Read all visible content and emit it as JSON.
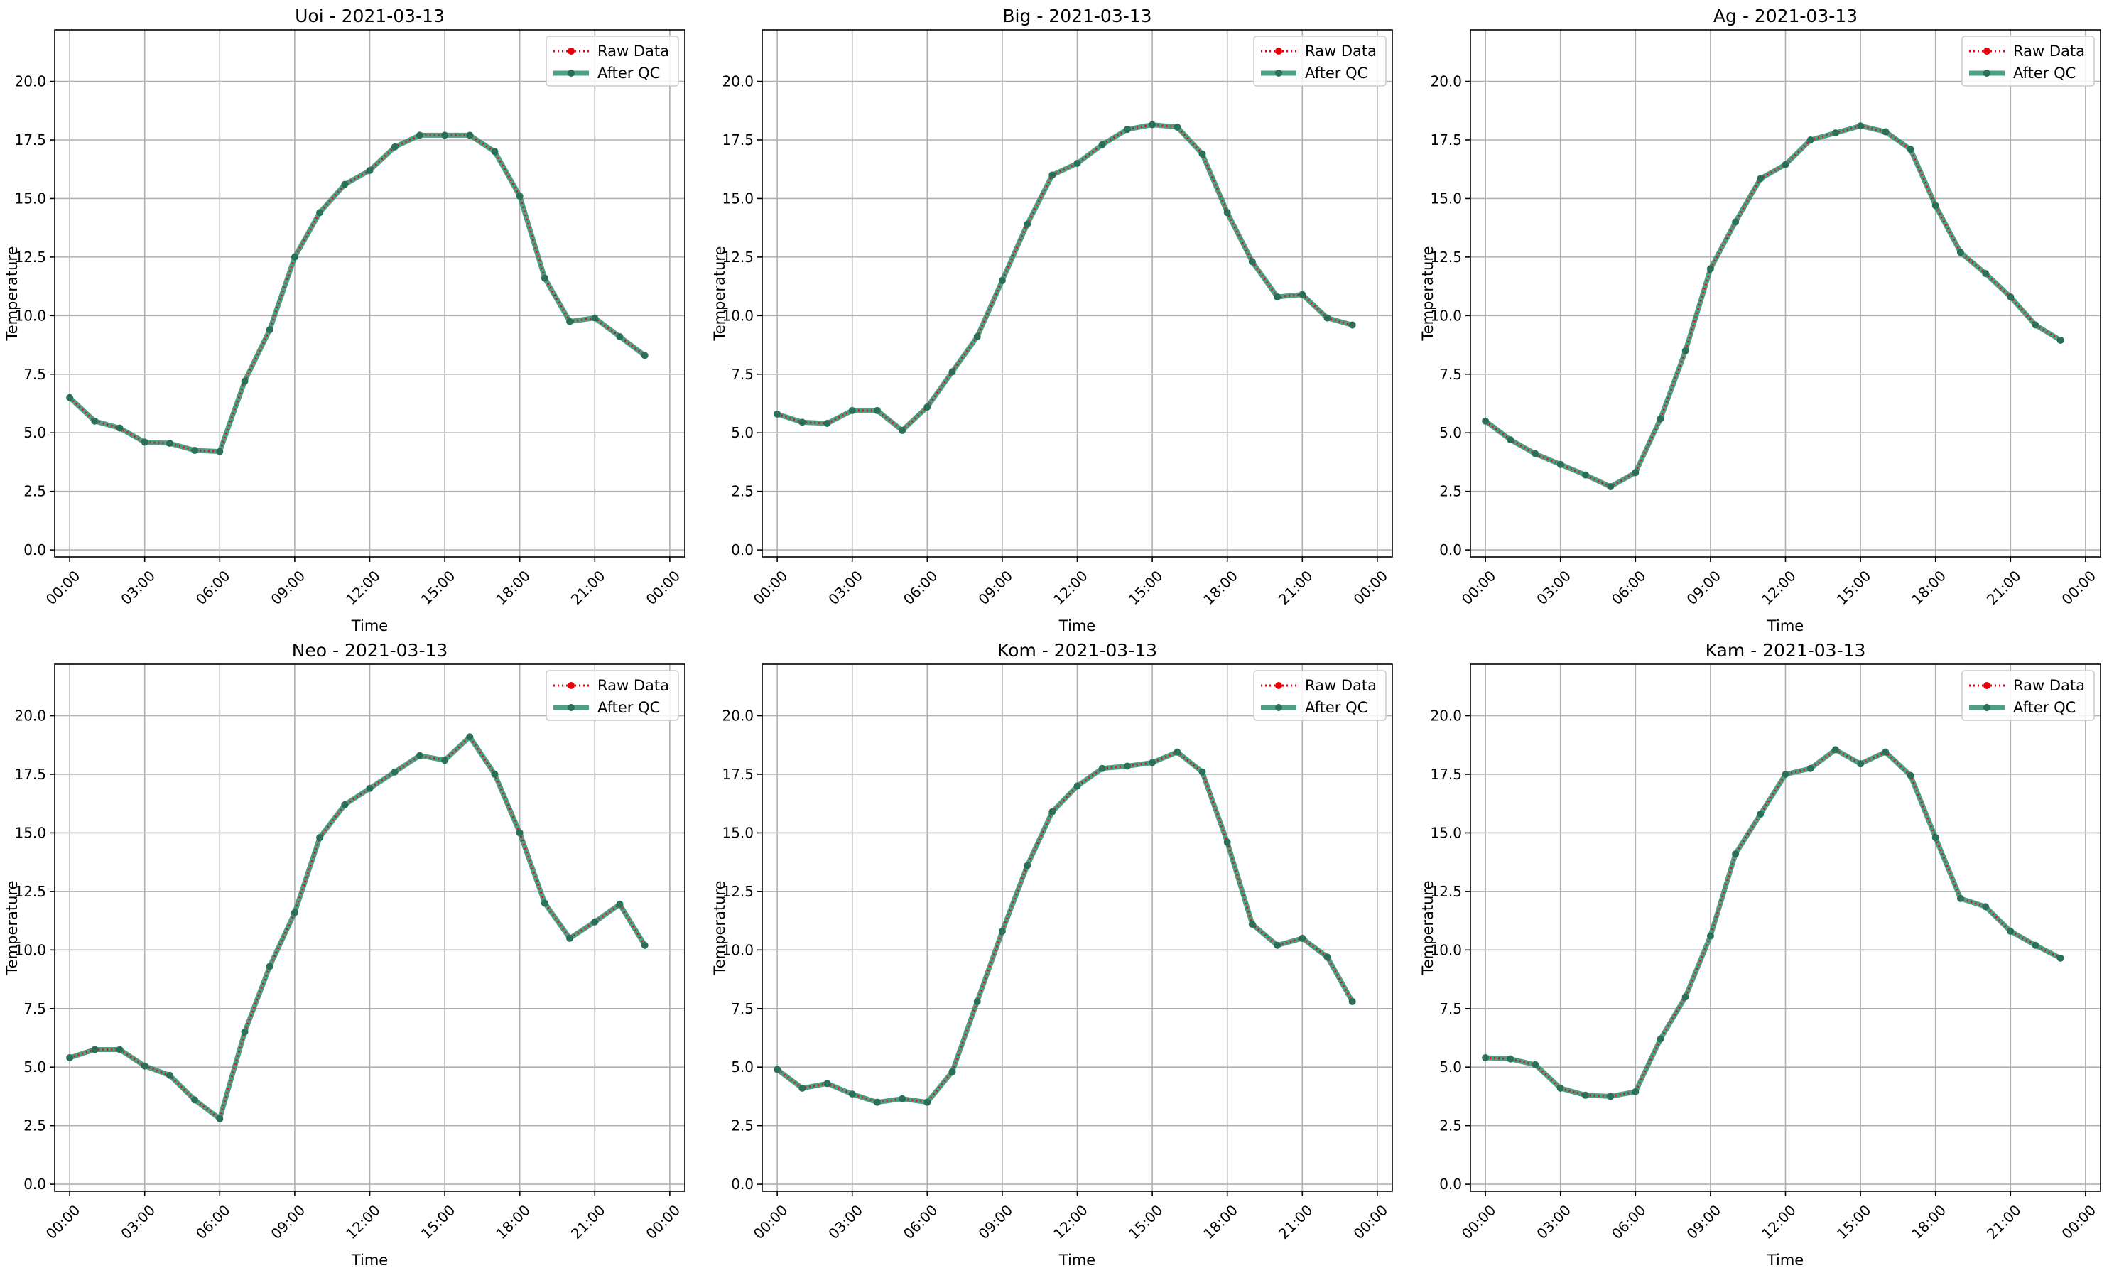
{
  "figure": {
    "background": "#ffffff"
  },
  "colors": {
    "raw": "#e8000b",
    "after_qc": "#2f8f6e",
    "grid": "#b0b0b0",
    "axis": "#000000"
  },
  "legend_labels": {
    "raw": "Raw Data",
    "after_qc": "After QC"
  },
  "chart_data": [
    {
      "type": "line",
      "title": "Uoi - 2021-03-13",
      "xlabel": "Time",
      "ylabel": "Temperature",
      "x_ticks": [
        "00:00",
        "03:00",
        "06:00",
        "09:00",
        "12:00",
        "15:00",
        "18:00",
        "21:00",
        "00:00"
      ],
      "y_ticks": [
        "0.0",
        "2.5",
        "5.0",
        "7.5",
        "10.0",
        "12.5",
        "15.0",
        "17.5",
        "20.0"
      ],
      "xlim_hours": [
        -0.6,
        24.6
      ],
      "ylim": [
        -0.3,
        22.2
      ],
      "grid": true,
      "legend_position": "top-right",
      "x_hours": [
        0,
        1,
        2,
        3,
        4,
        5,
        6,
        7,
        8,
        9,
        10,
        11,
        12,
        13,
        14,
        15,
        16,
        17,
        18,
        19,
        20,
        21,
        22,
        23
      ],
      "series": [
        {
          "name": "Raw Data",
          "style": "dotted",
          "values": [
            6.5,
            5.5,
            5.2,
            4.6,
            4.55,
            4.25,
            4.2,
            7.2,
            9.4,
            12.5,
            14.4,
            15.6,
            16.2,
            17.2,
            17.7,
            17.7,
            17.7,
            17.0,
            15.1,
            11.6,
            9.75,
            9.9,
            9.1,
            8.3
          ]
        },
        {
          "name": "After QC",
          "style": "solid",
          "values": [
            6.5,
            5.5,
            5.2,
            4.6,
            4.55,
            4.25,
            4.2,
            7.2,
            9.4,
            12.5,
            14.4,
            15.6,
            16.2,
            17.2,
            17.7,
            17.7,
            17.7,
            17.0,
            15.1,
            11.6,
            9.75,
            9.9,
            9.1,
            8.3
          ]
        }
      ]
    },
    {
      "type": "line",
      "title": "Big - 2021-03-13",
      "xlabel": "Time",
      "ylabel": "Temperature",
      "x_ticks": [
        "00:00",
        "03:00",
        "06:00",
        "09:00",
        "12:00",
        "15:00",
        "18:00",
        "21:00",
        "00:00"
      ],
      "y_ticks": [
        "0.0",
        "2.5",
        "5.0",
        "7.5",
        "10.0",
        "12.5",
        "15.0",
        "17.5",
        "20.0"
      ],
      "xlim_hours": [
        -0.6,
        24.6
      ],
      "ylim": [
        -0.3,
        22.2
      ],
      "grid": true,
      "legend_position": "top-right",
      "x_hours": [
        0,
        1,
        2,
        3,
        4,
        5,
        6,
        7,
        8,
        9,
        10,
        11,
        12,
        13,
        14,
        15,
        16,
        17,
        18,
        19,
        20,
        21,
        22,
        23
      ],
      "series": [
        {
          "name": "Raw Data",
          "style": "dotted",
          "values": [
            5.8,
            5.45,
            5.4,
            5.95,
            5.95,
            5.1,
            6.1,
            7.6,
            9.1,
            11.5,
            13.9,
            16.0,
            16.5,
            17.3,
            17.95,
            18.15,
            18.05,
            16.9,
            14.4,
            12.3,
            10.8,
            10.9,
            9.9,
            9.6
          ]
        },
        {
          "name": "After QC",
          "style": "solid",
          "values": [
            5.8,
            5.45,
            5.4,
            5.95,
            5.95,
            5.1,
            6.1,
            7.6,
            9.1,
            11.5,
            13.9,
            16.0,
            16.5,
            17.3,
            17.95,
            18.15,
            18.05,
            16.9,
            14.4,
            12.3,
            10.8,
            10.9,
            9.9,
            9.6
          ]
        }
      ]
    },
    {
      "type": "line",
      "title": "Ag - 2021-03-13",
      "xlabel": "Time",
      "ylabel": "Temperature",
      "x_ticks": [
        "00:00",
        "03:00",
        "06:00",
        "09:00",
        "12:00",
        "15:00",
        "18:00",
        "21:00",
        "00:00"
      ],
      "y_ticks": [
        "0.0",
        "2.5",
        "5.0",
        "7.5",
        "10.0",
        "12.5",
        "15.0",
        "17.5",
        "20.0"
      ],
      "xlim_hours": [
        -0.6,
        24.6
      ],
      "ylim": [
        -0.3,
        22.2
      ],
      "grid": true,
      "legend_position": "top-right",
      "x_hours": [
        0,
        1,
        2,
        3,
        4,
        5,
        6,
        7,
        8,
        9,
        10,
        11,
        12,
        13,
        14,
        15,
        16,
        17,
        18,
        19,
        20,
        21,
        22,
        23
      ],
      "series": [
        {
          "name": "Raw Data",
          "style": "dotted",
          "values": [
            5.5,
            4.7,
            4.1,
            3.65,
            3.2,
            2.7,
            3.3,
            5.6,
            8.5,
            12.0,
            14.0,
            15.85,
            16.45,
            17.5,
            17.8,
            18.1,
            17.85,
            17.1,
            14.7,
            12.7,
            11.8,
            10.8,
            9.6,
            8.95
          ]
        },
        {
          "name": "After QC",
          "style": "solid",
          "values": [
            5.5,
            4.7,
            4.1,
            3.65,
            3.2,
            2.7,
            3.3,
            5.6,
            8.5,
            12.0,
            14.0,
            15.85,
            16.45,
            17.5,
            17.8,
            18.1,
            17.85,
            17.1,
            14.7,
            12.7,
            11.8,
            10.8,
            9.6,
            8.95
          ]
        }
      ]
    },
    {
      "type": "line",
      "title": "Neo - 2021-03-13",
      "xlabel": "Time",
      "ylabel": "Temperature",
      "x_ticks": [
        "00:00",
        "03:00",
        "06:00",
        "09:00",
        "12:00",
        "15:00",
        "18:00",
        "21:00",
        "00:00"
      ],
      "y_ticks": [
        "0.0",
        "2.5",
        "5.0",
        "7.5",
        "10.0",
        "12.5",
        "15.0",
        "17.5",
        "20.0"
      ],
      "xlim_hours": [
        -0.6,
        24.6
      ],
      "ylim": [
        -0.3,
        22.2
      ],
      "grid": true,
      "legend_position": "top-right",
      "x_hours": [
        0,
        1,
        2,
        3,
        4,
        5,
        6,
        7,
        8,
        9,
        10,
        11,
        12,
        13,
        14,
        15,
        16,
        17,
        18,
        19,
        20,
        21,
        22,
        23
      ],
      "series": [
        {
          "name": "Raw Data",
          "style": "dotted",
          "values": [
            5.4,
            5.75,
            5.75,
            5.05,
            4.65,
            3.6,
            2.8,
            6.5,
            9.3,
            11.6,
            14.8,
            16.2,
            16.9,
            17.6,
            18.3,
            18.1,
            19.1,
            17.5,
            15.0,
            12.0,
            10.5,
            11.2,
            11.95,
            10.2
          ]
        },
        {
          "name": "After QC",
          "style": "solid",
          "values": [
            5.4,
            5.75,
            5.75,
            5.05,
            4.65,
            3.6,
            2.8,
            6.5,
            9.3,
            11.6,
            14.8,
            16.2,
            16.9,
            17.6,
            18.3,
            18.1,
            19.1,
            17.5,
            15.0,
            12.0,
            10.5,
            11.2,
            11.95,
            10.2
          ]
        }
      ]
    },
    {
      "type": "line",
      "title": "Kom - 2021-03-13",
      "xlabel": "Time",
      "ylabel": "Temperature",
      "x_ticks": [
        "00:00",
        "03:00",
        "06:00",
        "09:00",
        "12:00",
        "15:00",
        "18:00",
        "21:00",
        "00:00"
      ],
      "y_ticks": [
        "0.0",
        "2.5",
        "5.0",
        "7.5",
        "10.0",
        "12.5",
        "15.0",
        "17.5",
        "20.0"
      ],
      "xlim_hours": [
        -0.6,
        24.6
      ],
      "ylim": [
        -0.3,
        22.2
      ],
      "grid": true,
      "legend_position": "top-right",
      "x_hours": [
        0,
        1,
        2,
        3,
        4,
        5,
        6,
        7,
        8,
        9,
        10,
        11,
        12,
        13,
        14,
        15,
        16,
        17,
        18,
        19,
        20,
        21,
        22,
        23
      ],
      "series": [
        {
          "name": "Raw Data",
          "style": "dotted",
          "values": [
            4.9,
            4.1,
            4.3,
            3.85,
            3.5,
            3.65,
            3.5,
            4.8,
            7.8,
            10.8,
            13.6,
            15.9,
            17.0,
            17.75,
            17.85,
            18.0,
            18.45,
            17.6,
            14.6,
            11.1,
            10.2,
            10.5,
            9.7,
            7.8
          ]
        },
        {
          "name": "After QC",
          "style": "solid",
          "values": [
            4.9,
            4.1,
            4.3,
            3.85,
            3.5,
            3.65,
            3.5,
            4.8,
            7.8,
            10.8,
            13.6,
            15.9,
            17.0,
            17.75,
            17.85,
            18.0,
            18.45,
            17.6,
            14.6,
            11.1,
            10.2,
            10.5,
            9.7,
            7.8
          ]
        }
      ]
    },
    {
      "type": "line",
      "title": "Kam - 2021-03-13",
      "xlabel": "Time",
      "ylabel": "Temperature",
      "x_ticks": [
        "00:00",
        "03:00",
        "06:00",
        "09:00",
        "12:00",
        "15:00",
        "18:00",
        "21:00",
        "00:00"
      ],
      "y_ticks": [
        "0.0",
        "2.5",
        "5.0",
        "7.5",
        "10.0",
        "12.5",
        "15.0",
        "17.5",
        "20.0"
      ],
      "xlim_hours": [
        -0.6,
        24.6
      ],
      "ylim": [
        -0.3,
        22.2
      ],
      "grid": true,
      "legend_position": "top-right",
      "x_hours": [
        0,
        1,
        2,
        3,
        4,
        5,
        6,
        7,
        8,
        9,
        10,
        11,
        12,
        13,
        14,
        15,
        16,
        17,
        18,
        19,
        20,
        21,
        22,
        23
      ],
      "series": [
        {
          "name": "Raw Data",
          "style": "dotted",
          "values": [
            5.4,
            5.35,
            5.1,
            4.1,
            3.8,
            3.75,
            3.95,
            6.2,
            8.0,
            10.6,
            14.1,
            15.8,
            17.5,
            17.75,
            18.55,
            17.95,
            18.45,
            17.45,
            14.8,
            12.2,
            11.85,
            10.8,
            10.2,
            9.65
          ]
        },
        {
          "name": "After QC",
          "style": "solid",
          "values": [
            5.4,
            5.35,
            5.1,
            4.1,
            3.8,
            3.75,
            3.95,
            6.2,
            8.0,
            10.6,
            14.1,
            15.8,
            17.5,
            17.75,
            18.55,
            17.95,
            18.45,
            17.45,
            14.8,
            12.2,
            11.85,
            10.8,
            10.2,
            9.65
          ]
        }
      ]
    }
  ]
}
